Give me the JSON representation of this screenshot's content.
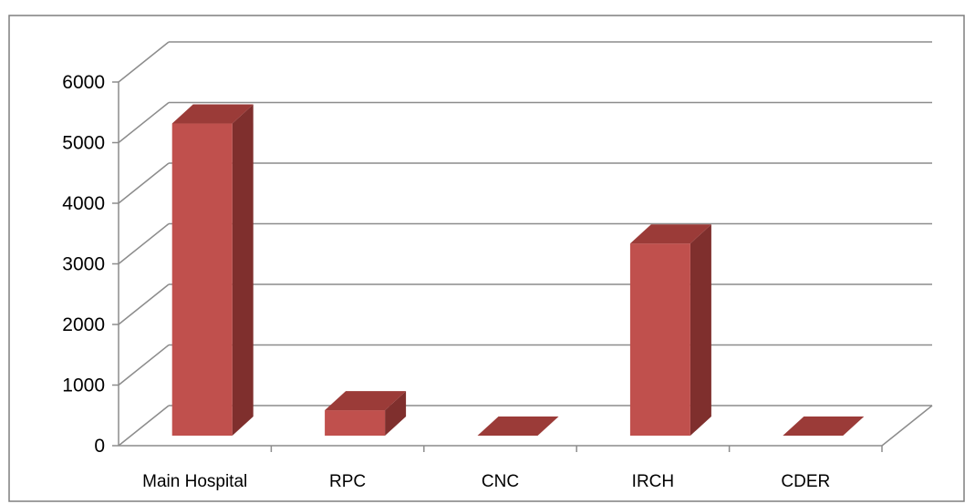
{
  "chart_data": {
    "type": "bar",
    "categories": [
      "Main Hospital",
      "RPC",
      "CNC",
      "IRCH",
      "CDER"
    ],
    "values": [
      5150,
      420,
      0,
      3170,
      0
    ],
    "ylim": [
      0,
      6000
    ],
    "yticks": [
      0,
      1000,
      2000,
      3000,
      4000,
      5000,
      6000
    ],
    "grid": true,
    "legend": "none",
    "colors": {
      "bar_front": "#c0504d",
      "bar_side": "#7f2f2d",
      "bar_top": "#9b3b38",
      "grid": "#8c8c8c"
    }
  }
}
